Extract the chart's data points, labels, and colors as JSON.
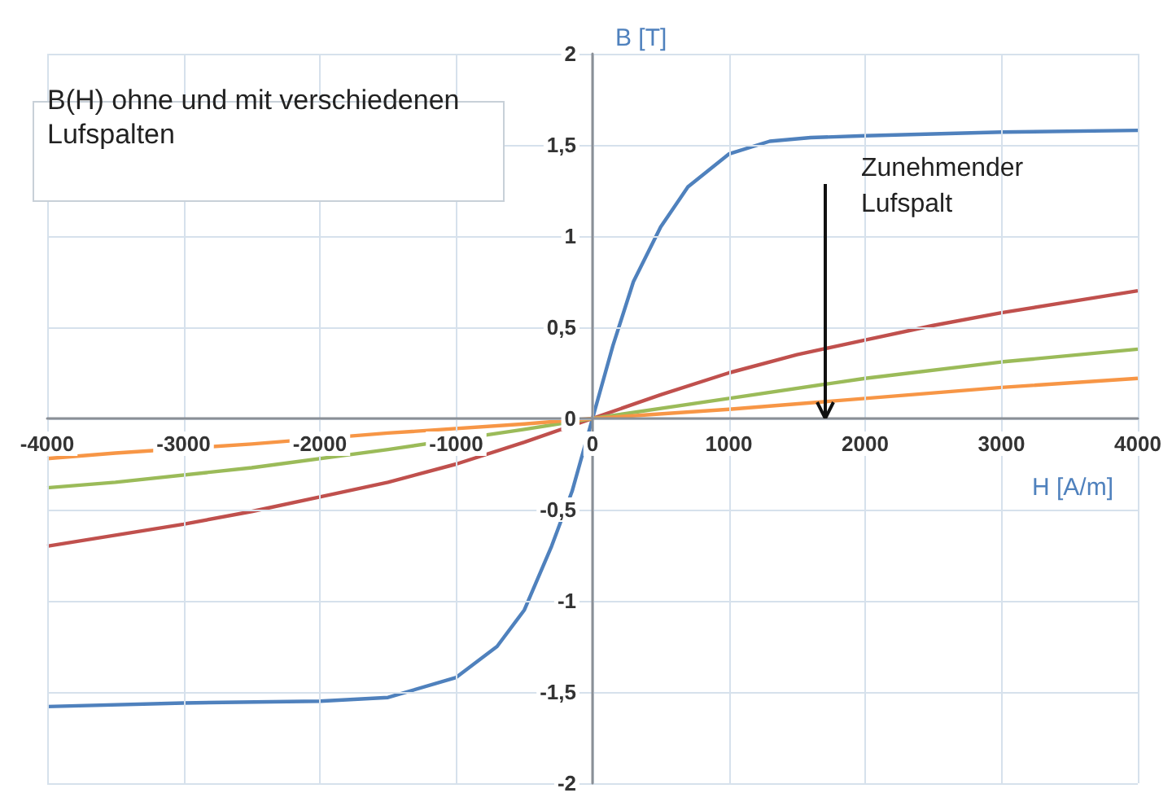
{
  "chart_data": {
    "type": "line",
    "title": "B(H) ohne und mit verschiedenen Lufspalten",
    "xlabel": "H [A/m]",
    "ylabel": "B [T]",
    "annotations": [
      "Zunehmender Lufspalt"
    ],
    "xlim": [
      -4000,
      4000
    ],
    "xticks": [
      -4000,
      -3000,
      -2000,
      -1000,
      0,
      1000,
      2000,
      3000,
      4000
    ],
    "ylim": [
      -2,
      2
    ],
    "yticks": [
      -2,
      {
        "value": -1.5,
        "label": "-1,5"
      },
      -1,
      {
        "value": -0.5,
        "label": "-0,5"
      },
      0,
      {
        "value": 0.5,
        "label": "0,5"
      },
      1,
      {
        "value": 1.5,
        "label": "1,5"
      },
      2
    ],
    "grid": true,
    "marker": "none",
    "line_style": "solid",
    "series": [
      {
        "color": "#4f81bd",
        "x": [
          -4000,
          -3000,
          -2000,
          -1500,
          -1000,
          -700,
          -500,
          -300,
          -150,
          0,
          150,
          300,
          500,
          700,
          1000,
          1300,
          1600,
          2000,
          3000,
          4000
        ],
        "values": [
          -1.58,
          -1.56,
          -1.55,
          -1.53,
          -1.42,
          -1.25,
          -1.05,
          -0.7,
          -0.4,
          0,
          0.4,
          0.75,
          1.05,
          1.27,
          1.45,
          1.52,
          1.54,
          1.55,
          1.57,
          1.58
        ]
      },
      {
        "color": "#c0504d",
        "x": [
          -4000,
          -3500,
          -3000,
          -2500,
          -2000,
          -1500,
          -1000,
          -500,
          0,
          500,
          1000,
          1500,
          2000,
          2500,
          3000,
          3500,
          4000
        ],
        "values": [
          -0.7,
          -0.64,
          -0.58,
          -0.51,
          -0.43,
          -0.35,
          -0.25,
          -0.13,
          0,
          0.13,
          0.25,
          0.35,
          0.43,
          0.51,
          0.58,
          0.64,
          0.7
        ]
      },
      {
        "color": "#9bbb59",
        "x": [
          -4000,
          -3500,
          -2500,
          -1500,
          -500,
          0,
          1000,
          2000,
          3000,
          4000
        ],
        "values": [
          -0.38,
          -0.35,
          -0.27,
          -0.17,
          -0.06,
          0,
          0.11,
          0.22,
          0.31,
          0.38
        ]
      },
      {
        "color": "#f79646",
        "x": [
          -4000,
          -3500,
          -2500,
          -1500,
          -500,
          0,
          1000,
          2000,
          3000,
          4000
        ],
        "values": [
          -0.22,
          -0.19,
          -0.14,
          -0.08,
          -0.03,
          0,
          0.05,
          0.11,
          0.17,
          0.22
        ]
      }
    ]
  }
}
